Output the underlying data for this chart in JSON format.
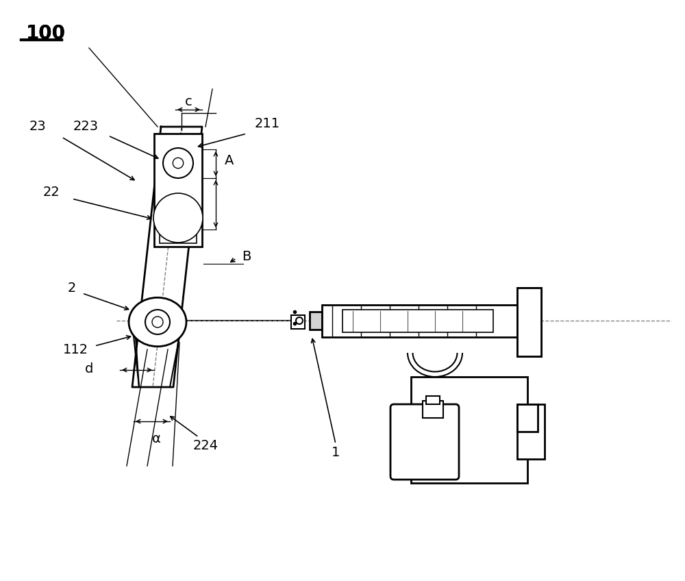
{
  "bg_color": "#ffffff",
  "line_color": "#000000",
  "gray_color": "#888888",
  "dashed_color": "#888888",
  "fig_width": 10.0,
  "fig_height": 8.48,
  "label_100": "100",
  "label_211": "211",
  "label_223": "223",
  "label_23": "23",
  "label_22": "22",
  "label_2": "2",
  "label_112": "112",
  "label_c": "c",
  "label_A": "A",
  "label_B": "B",
  "label_d": "d",
  "label_alpha": "α",
  "label_224": "224",
  "label_1": "1",
  "font_size": 14
}
